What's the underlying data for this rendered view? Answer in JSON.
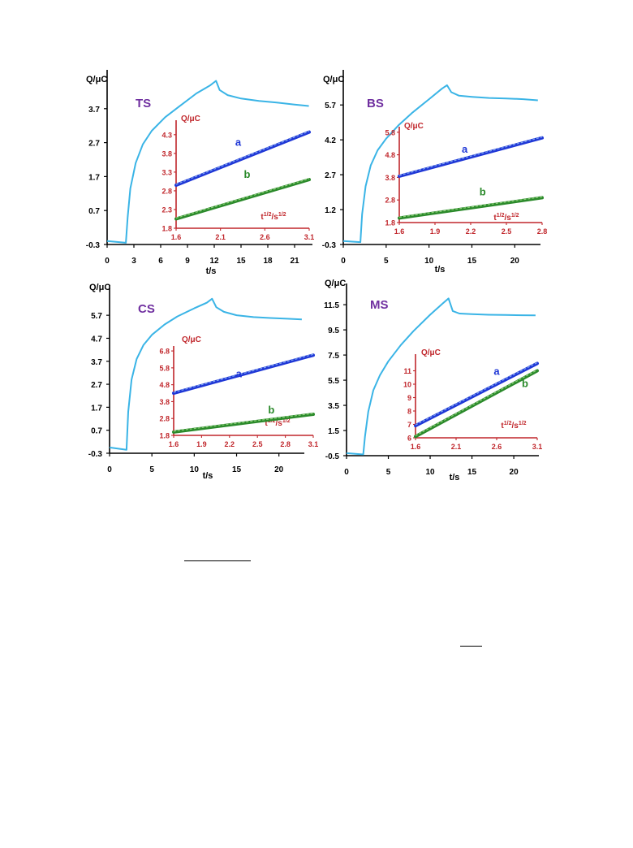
{
  "colors": {
    "main_curve": "#3ab4e6",
    "inset_axis": "#c0262b",
    "series_a": "#1f37d6",
    "series_a_fit": "#7fa8f0",
    "series_b": "#2b8a2b",
    "series_b_fit": "#8fd07a",
    "panel_label": "#7030a0",
    "main_axis": "#000000"
  },
  "chart_data": [
    {
      "type": "line",
      "panel_label": "TS",
      "ylabel": "Q/μC",
      "xlabel": "t/s",
      "xlim": [
        0,
        23
      ],
      "ylim": [
        -0.3,
        4.7
      ],
      "x_ticks": [
        "0",
        "3",
        "6",
        "9",
        "12",
        "15",
        "18",
        "21"
      ],
      "y_ticks": [
        "-0.3",
        "0.7",
        "1.7",
        "2.7",
        "3.7"
      ],
      "series": [
        {
          "x": [
            0,
            2.1,
            2.3,
            2.6,
            3.2,
            4,
            5,
            6.5,
            8,
            10,
            11.5,
            12.2,
            12.6,
            13.5,
            15,
            17,
            19,
            21,
            22.6
          ],
          "y": [
            -0.2,
            -0.25,
            0.5,
            1.35,
            2.1,
            2.65,
            3.05,
            3.45,
            3.75,
            4.15,
            4.38,
            4.52,
            4.25,
            4.1,
            4.0,
            3.93,
            3.88,
            3.82,
            3.78
          ]
        }
      ],
      "inset": {
        "ylabel": "Q/μC",
        "xlabel": "t1/2/s1/2",
        "xlabel_base": "t",
        "xlabel_sup1": "1/2",
        "xlabel_mid": "/s",
        "xlabel_sup2": "1/2",
        "xlim": [
          1.6,
          3.1
        ],
        "ylim": [
          1.8,
          4.6
        ],
        "x_ticks": [
          "1.6",
          "2.1",
          "2.6",
          "3.1"
        ],
        "y_ticks": [
          "1.8",
          "2.3",
          "2.8",
          "3.3",
          "3.8",
          "4.3"
        ],
        "series": [
          {
            "name": "a",
            "x": [
              1.6,
              3.1
            ],
            "y": [
              2.95,
              4.37
            ]
          },
          {
            "name": "b",
            "x": [
              1.6,
              3.1
            ],
            "y": [
              2.05,
              3.1
            ]
          }
        ],
        "label_pos": {
          "a": [
            2.3,
            4.0
          ],
          "b": [
            2.4,
            3.15
          ]
        }
      }
    },
    {
      "type": "line",
      "panel_label": "BS",
      "ylabel": "Q/μC",
      "xlabel": "t/s",
      "xlim": [
        0,
        23
      ],
      "ylim": [
        -0.3,
        7.0
      ],
      "x_ticks": [
        "0",
        "5",
        "10",
        "15",
        "20"
      ],
      "y_ticks": [
        "-0.3",
        "1.2",
        "2.7",
        "4.2",
        "5.7"
      ],
      "series": [
        {
          "x": [
            0,
            2.0,
            2.2,
            2.6,
            3.2,
            4,
            5,
            6.5,
            8,
            10,
            11.5,
            12.1,
            12.6,
            13.5,
            15,
            17,
            19,
            21,
            22.7
          ],
          "y": [
            -0.15,
            -0.2,
            1.0,
            2.2,
            3.1,
            3.75,
            4.25,
            4.85,
            5.35,
            5.95,
            6.4,
            6.55,
            6.25,
            6.1,
            6.05,
            6.0,
            5.98,
            5.95,
            5.9
          ]
        }
      ],
      "inset": {
        "ylabel": "Q/μC",
        "xlabel": "t1/2/s1/2",
        "xlabel_base": "t",
        "xlabel_sup1": "1/2",
        "xlabel_mid": "/s",
        "xlabel_sup2": "1/2",
        "xlim": [
          1.6,
          2.8
        ],
        "ylim": [
          1.8,
          5.9
        ],
        "x_ticks": [
          "1.6",
          "1.9",
          "2.2",
          "2.5",
          "2.8"
        ],
        "y_ticks": [
          "1.8",
          "2.8",
          "3.8",
          "4.8",
          "5.8"
        ],
        "series": [
          {
            "name": "a",
            "x": [
              1.6,
              2.8
            ],
            "y": [
              3.85,
              5.55
            ]
          },
          {
            "name": "b",
            "x": [
              1.6,
              2.8
            ],
            "y": [
              2.0,
              2.9
            ]
          }
        ],
        "label_pos": {
          "a": [
            2.15,
            4.9
          ],
          "b": [
            2.3,
            3.0
          ]
        }
      }
    },
    {
      "type": "line",
      "panel_label": "CS",
      "ylabel": "Q/μC",
      "xlabel": "t/s",
      "xlim": [
        0,
        23
      ],
      "ylim": [
        -0.3,
        6.8
      ],
      "x_ticks": [
        "0",
        "5",
        "10",
        "15",
        "20"
      ],
      "y_ticks": [
        "-0.3",
        "0.7",
        "1.7",
        "2.7",
        "3.7",
        "4.7",
        "5.7"
      ],
      "series": [
        {
          "x": [
            0,
            2.0,
            2.2,
            2.6,
            3.2,
            4,
            5,
            6.5,
            8,
            10,
            11.5,
            12.1,
            12.6,
            13.5,
            15,
            17,
            19,
            21,
            22.7
          ],
          "y": [
            -0.05,
            -0.15,
            1.5,
            2.9,
            3.8,
            4.4,
            4.85,
            5.3,
            5.65,
            6.0,
            6.25,
            6.42,
            6.05,
            5.85,
            5.7,
            5.62,
            5.58,
            5.55,
            5.52
          ]
        }
      ],
      "inset": {
        "ylabel": "Q/μC",
        "xlabel": "t1/2/s1/2",
        "xlabel_base": "t",
        "xlabel_sup1": "1/2",
        "xlabel_mid": "/s",
        "xlabel_sup2": "1/2",
        "xlim": [
          1.6,
          3.1
        ],
        "ylim": [
          1.8,
          6.9
        ],
        "x_ticks": [
          "1.6",
          "1.9",
          "2.2",
          "2.5",
          "2.8",
          "3.1"
        ],
        "y_ticks": [
          "1.8",
          "2.8",
          "3.8",
          "4.8",
          "5.8",
          "6.8"
        ],
        "series": [
          {
            "name": "a",
            "x": [
              1.6,
              3.1
            ],
            "y": [
              4.3,
              6.55
            ]
          },
          {
            "name": "b",
            "x": [
              1.6,
              3.1
            ],
            "y": [
              2.0,
              3.05
            ]
          }
        ],
        "label_pos": {
          "a": [
            2.3,
            5.25
          ],
          "b": [
            2.65,
            3.1
          ]
        }
      }
    },
    {
      "type": "line",
      "panel_label": "MS",
      "ylabel": "Q/μC",
      "xlabel": "t/s",
      "xlim": [
        0,
        23
      ],
      "ylim": [
        -0.5,
        12.8
      ],
      "x_ticks": [
        "0",
        "5",
        "10",
        "15",
        "20"
      ],
      "y_ticks": [
        "-0.5",
        "1.5",
        "3.5",
        "5.5",
        "7.5",
        "9.5",
        "11.5"
      ],
      "series": [
        {
          "x": [
            0,
            2.0,
            2.2,
            2.6,
            3.2,
            4,
            5,
            6.5,
            8,
            10,
            11.5,
            12.2,
            12.7,
            13.5,
            15,
            17,
            19,
            21,
            22.6
          ],
          "y": [
            -0.3,
            -0.4,
            1.0,
            3.0,
            4.7,
            5.9,
            7.0,
            8.3,
            9.4,
            10.7,
            11.6,
            12.0,
            11.0,
            10.8,
            10.75,
            10.7,
            10.68,
            10.66,
            10.65
          ]
        }
      ],
      "inset": {
        "ylabel": "Q/μC",
        "xlabel": "t1/2/s1/2",
        "xlabel_base": "t",
        "xlabel_sup1": "1/2",
        "xlabel_mid": "/s",
        "xlabel_sup2": "1/2",
        "xlim": [
          1.6,
          3.1
        ],
        "ylim": [
          6,
          12
        ],
        "x_ticks": [
          "1.6",
          "2.1",
          "2.6",
          "3.1"
        ],
        "y_ticks": [
          "6",
          "7",
          "8",
          "9",
          "10",
          "11"
        ],
        "series": [
          {
            "name": "a",
            "x": [
              1.6,
              3.1
            ],
            "y": [
              6.9,
              11.55
            ]
          },
          {
            "name": "b",
            "x": [
              1.6,
              3.1
            ],
            "y": [
              6.1,
              11.0
            ]
          }
        ],
        "label_pos": {
          "a": [
            2.6,
            10.7
          ],
          "b": [
            2.95,
            9.8
          ]
        }
      }
    }
  ]
}
